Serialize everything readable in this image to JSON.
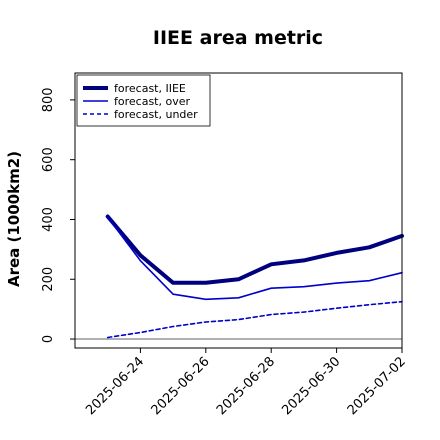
{
  "colors": {
    "forecast_iiee": "#00007f",
    "forecast_over": "#0000cc",
    "forecast_under": "#0000cc",
    "zero_line": "#808080",
    "highlight_tick": "#228b22"
  },
  "chart_data": {
    "type": "line",
    "title": "IIEE area metric",
    "ylabel": "Area (1000km2)",
    "xlabel": "",
    "ylim": [
      -30,
      890
    ],
    "yticks": [
      0,
      200,
      400,
      600,
      800
    ],
    "y_tick_labels": [
      "0",
      "200",
      "400",
      "600",
      "800"
    ],
    "xlim": [
      "2025-06-22",
      "2025-07-02"
    ],
    "x_ticks": [
      "2025-06-24",
      "2025-06-26",
      "2025-06-28",
      "2025-06-30",
      "2025-07-02"
    ],
    "x_tick_labels": [
      "2025-06-24",
      "2025-06-26",
      "2025-06-28",
      "2025-06-30",
      "2025-07-02"
    ],
    "highlighted_x_tick": "2025-06-24",
    "grid": false,
    "legend_position": "upper-left",
    "x": [
      "2025-06-23",
      "2025-06-24",
      "2025-06-25",
      "2025-06-26",
      "2025-06-27",
      "2025-06-28",
      "2025-06-29",
      "2025-06-30",
      "2025-07-01",
      "2025-07-02"
    ],
    "series": [
      {
        "name": "forecast, IIEE",
        "style": "thick",
        "values": [
          410,
          280,
          188,
          188,
          200,
          250,
          263,
          288,
          307,
          345
        ]
      },
      {
        "name": "forecast, over",
        "style": "solid",
        "values": [
          408,
          262,
          150,
          133,
          138,
          170,
          175,
          187,
          195,
          222
        ]
      },
      {
        "name": "forecast, under",
        "style": "dashed",
        "values": [
          5,
          22,
          42,
          57,
          65,
          82,
          90,
          103,
          115,
          125
        ]
      }
    ],
    "reference_line": {
      "y": 0
    }
  }
}
